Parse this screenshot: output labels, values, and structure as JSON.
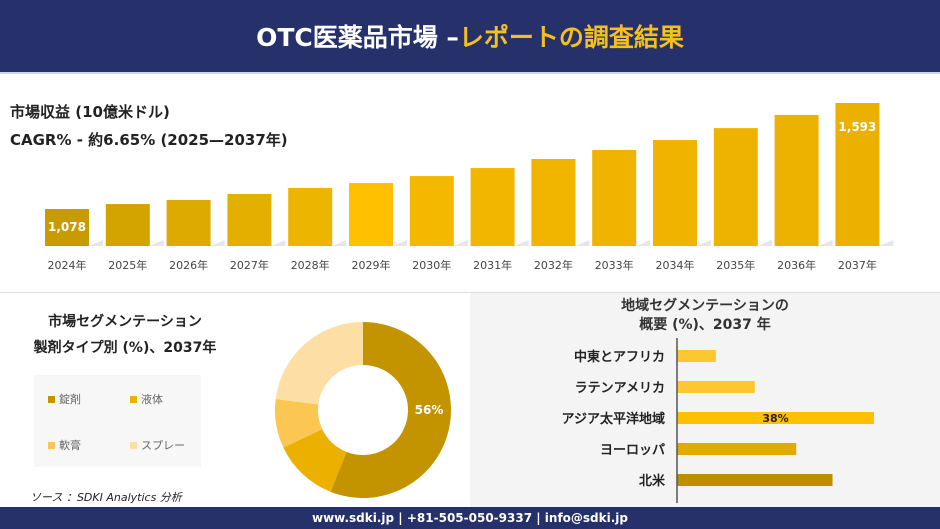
{
  "header": {
    "title_white": "OTC医薬品市場 –",
    "title_yellow": "レポートの調査結果"
  },
  "revenue": {
    "title": "市場収益 (10億米ドル)",
    "cagr": "CAGR% - 約6.65% (2025—2037年)"
  },
  "chart_data": [
    {
      "type": "bar",
      "title": "市場収益 (10億米ドル)",
      "categories": [
        "2024年",
        "2025年",
        "2026年",
        "2027年",
        "2028年",
        "2029年",
        "2030年",
        "2031年",
        "2032年",
        "2033年",
        "2034年",
        "2035年",
        "2036年",
        "2037年"
      ],
      "values": [
        1078,
        1102,
        1122,
        1151,
        1180,
        1204,
        1238,
        1277,
        1321,
        1365,
        1413,
        1471,
        1535,
        1593
      ],
      "data_labels": {
        "0": "1,078",
        "13": "1,593"
      },
      "ylim": [
        898,
        1620
      ],
      "grid": false,
      "colors": [
        "#c89b00",
        "#d3a300",
        "#dcaa00",
        "#e3b000",
        "#ecb600",
        "#ffc000",
        "#f4b800",
        "#f2b600",
        "#f1b500",
        "#f0b400",
        "#efb300",
        "#eeb200",
        "#edb100",
        "#ecb000"
      ]
    },
    {
      "type": "pie",
      "title": "市場セグメンテーション 製剤タイプ別 (%)、2037年",
      "labels": [
        "錠剤",
        "液体",
        "軟膏",
        "スプレー"
      ],
      "values": [
        56,
        12,
        9,
        23
      ],
      "colors": [
        "#c39400",
        "#ebb000",
        "#fcc653",
        "#fddfa5"
      ],
      "data_labels": {
        "0": "56%"
      }
    },
    {
      "type": "bar",
      "orientation": "horizontal",
      "title": "地域セグメンテーションの 概要 (%)、2037 年",
      "categories": [
        "中東とアフリカ",
        "ラテンアメリカ",
        "アジア太平洋地域",
        "ヨーロッパ",
        "北米"
      ],
      "values": [
        7.5,
        15,
        38,
        23,
        30
      ],
      "data_labels": {
        "2": "38%"
      },
      "colors": [
        "#fdc731",
        "#fdc731",
        "#ffc000",
        "#e0aa00",
        "#bf8f00"
      ]
    }
  ],
  "segment": {
    "title1": "市場セグメンテーション",
    "title2": "製剤タイプ別 (%)、2037年"
  },
  "region": {
    "title1": "地域セグメンテーションの",
    "title2": "概要 (%)、2037 年"
  },
  "source": "ソース ：SDKI Analytics 分析",
  "footer": "www.sdki.jp | +81-505-050-9337 | info@sdki.jp"
}
